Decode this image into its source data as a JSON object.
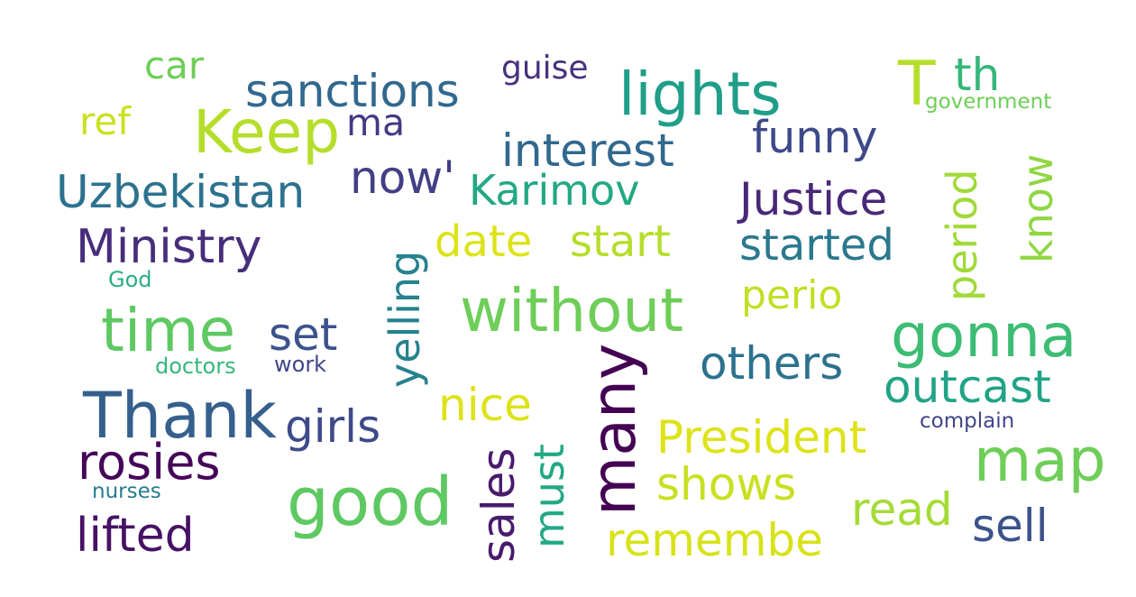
{
  "word_cloud": {
    "words": [
      {
        "text": "lights",
        "color": "#1f9e89"
      },
      {
        "text": "T",
        "color": "#b5de2b"
      },
      {
        "text": "th",
        "color": "#35b779"
      },
      {
        "text": "government",
        "color": "#6ece58"
      },
      {
        "text": "car",
        "color": "#6ece58"
      },
      {
        "text": "guise",
        "color": "#46327e"
      },
      {
        "text": "sanctions",
        "color": "#31688e"
      },
      {
        "text": "ma",
        "color": "#443983"
      },
      {
        "text": "Keep",
        "color": "#b5de2b"
      },
      {
        "text": "ref",
        "color": "#cae11f"
      },
      {
        "text": "interest",
        "color": "#31688e"
      },
      {
        "text": "funny",
        "color": "#3e4989"
      },
      {
        "text": "now'",
        "color": "#433e85"
      },
      {
        "text": "Uzbekistan",
        "color": "#2c728e"
      },
      {
        "text": "Karimov",
        "color": "#22a884"
      },
      {
        "text": "Justice",
        "color": "#482878"
      },
      {
        "text": "period",
        "color": "#a0da39"
      },
      {
        "text": "know",
        "color": "#90d743"
      },
      {
        "text": "Ministry",
        "color": "#472d7b"
      },
      {
        "text": "date",
        "color": "#dde318"
      },
      {
        "text": "start",
        "color": "#b5de2b"
      },
      {
        "text": "started",
        "color": "#2a788e"
      },
      {
        "text": "yelling",
        "color": "#26828e"
      },
      {
        "text": "God",
        "color": "#29af7f"
      },
      {
        "text": "perio",
        "color": "#c2df23"
      },
      {
        "text": "without",
        "color": "#6ece58"
      },
      {
        "text": "time",
        "color": "#5ec962"
      },
      {
        "text": "set",
        "color": "#3b528b"
      },
      {
        "text": "gonna",
        "color": "#3dbc74"
      },
      {
        "text": "others",
        "color": "#2c728e"
      },
      {
        "text": "doctors",
        "color": "#35b779"
      },
      {
        "text": "work",
        "color": "#414487"
      },
      {
        "text": "many",
        "color": "#440154"
      },
      {
        "text": "outcast",
        "color": "#20a386"
      },
      {
        "text": "Thank",
        "color": "#355f8d"
      },
      {
        "text": "nice",
        "color": "#dde318"
      },
      {
        "text": "girls",
        "color": "#3e4a89"
      },
      {
        "text": "complain",
        "color": "#404688"
      },
      {
        "text": "President",
        "color": "#dde318"
      },
      {
        "text": "rosies",
        "color": "#450559"
      },
      {
        "text": "map",
        "color": "#6ece58"
      },
      {
        "text": "shows",
        "color": "#c8e020"
      },
      {
        "text": "nurses",
        "color": "#287c8e"
      },
      {
        "text": "good",
        "color": "#5ec962"
      },
      {
        "text": "sales",
        "color": "#481b6d"
      },
      {
        "text": "must",
        "color": "#22a884"
      },
      {
        "text": "read",
        "color": "#a5db36"
      },
      {
        "text": "lifted",
        "color": "#471164"
      },
      {
        "text": "remembe",
        "color": "#d8e219"
      },
      {
        "text": "sell",
        "color": "#3b528b"
      }
    ]
  }
}
